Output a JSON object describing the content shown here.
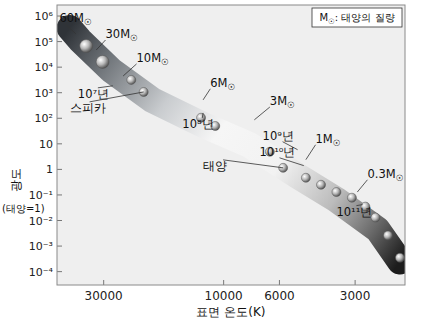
{
  "chart_data": {
    "type": "scatter",
    "log": true,
    "xlabel": "표면 온도(K)",
    "ylabel": "광도",
    "ylabel_note": "(태양=1)",
    "note": "M☉: 태양의 질량",
    "legend": "upper right",
    "xlim": [
      46000,
      1900
    ],
    "xticks": [
      30000,
      10000,
      6000,
      3000
    ],
    "ylim": [
      3e-05,
      2700000
    ],
    "yticks": [
      {
        "value": 1000000,
        "label": "10⁶"
      },
      {
        "value": 100000,
        "label": "10⁵"
      },
      {
        "value": 10000,
        "label": "10⁴"
      },
      {
        "value": 1000,
        "label": "10³"
      },
      {
        "value": 100,
        "label": "10²"
      },
      10,
      1,
      {
        "value": 0.1,
        "label": "10⁻¹"
      },
      {
        "value": 0.01,
        "label": "10⁻²"
      },
      {
        "value": 0.001,
        "label": "10⁻³"
      },
      {
        "value": 0.0001,
        "label": "10⁻⁴"
      }
    ],
    "series": [
      {
        "type": "line",
        "x": [
          41000,
          37300,
          28100,
          19300,
          12070,
          7910,
          5180,
          3560,
          2440,
          1990
        ],
        "values": [
          340000,
          115000,
          7800,
          525,
          55,
          9.1,
          0.62,
          0.065,
          0.0044,
          0.00025
        ]
      },
      {
        "type": "scatter",
        "x": [
          35200,
          30300,
          23300,
          20800,
          12300,
          10800,
          6550,
          5800,
          4710,
          4100,
          3560,
          3090,
          2730,
          2490,
          2220,
          1990
        ],
        "values": [
          67000,
          16000,
          3160,
          1070,
          105,
          50,
          4.9,
          1.15,
          0.47,
          0.25,
          0.13,
          0.078,
          0.035,
          0.013,
          0.0026,
          0.00035
        ]
      }
    ],
    "annotations": [
      {
        "text": "60M☉",
        "x": 45000,
        "y": 585000,
        "target": [
          38700,
          200000
        ]
      },
      {
        "text": "30M☉",
        "x": 29500,
        "y": 138000,
        "target": [
          32100,
          47000
        ]
      },
      {
        "text": "10M☉",
        "x": 22200,
        "y": 16000,
        "target": [
          25100,
          4500
        ]
      },
      {
        "text": "6M☉",
        "x": 11300,
        "y": 1700,
        "target": [
          12070,
          525
        ]
      },
      {
        "text": "3M☉",
        "x": 6550,
        "y": 330,
        "target": [
          7550,
          87
        ]
      },
      {
        "text": "1M☉",
        "x": 4310,
        "y": 11,
        "target": [
          4710,
          2.4
        ]
      },
      {
        "text": "0.3M☉",
        "x": 2680,
        "y": 0.47,
        "target": [
          2940,
          0.13
        ]
      },
      {
        "text": "10⁷년",
        "x": 38000,
        "y": 630,
        "target": [
          27600,
          1860
        ]
      },
      {
        "text": "스피카",
        "x": 41000,
        "y": 178,
        "target": [
          20800,
          1070
        ]
      },
      {
        "text": "10⁸년",
        "x": 14600,
        "y": 42,
        "target": [
          12070,
          162
        ]
      },
      {
        "text": "10⁹년",
        "x": 7000,
        "y": 14.5,
        "target": [
          5080,
          5.9
        ]
      },
      {
        "text": "10¹⁰년",
        "x": 7200,
        "y": 3.4,
        "target": [
          4800,
          1.4
        ]
      },
      {
        "text": "태양",
        "x": 12070,
        "y": 0.96,
        "target": [
          5800,
          1.15
        ]
      },
      {
        "text": "10¹¹년",
        "x": 3560,
        "y": 0.0155,
        "target": [
          2800,
          0.042
        ]
      }
    ]
  }
}
